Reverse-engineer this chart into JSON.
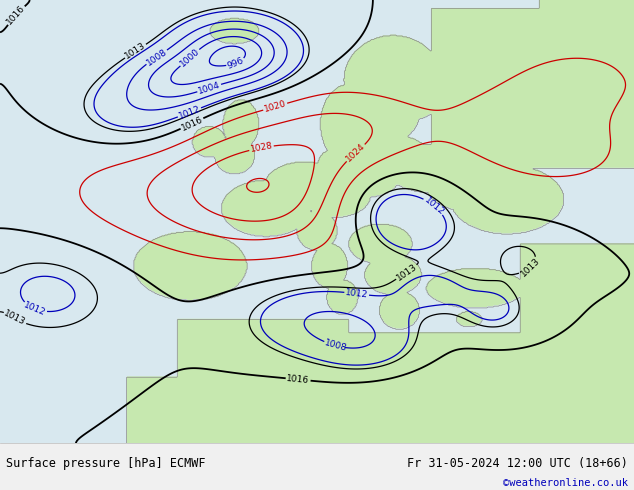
{
  "title_left": "Surface pressure [hPa] ECMWF",
  "title_right": "Fr 31-05-2024 12:00 UTC (18+66)",
  "credit": "©weatheronline.co.uk",
  "sea_color": "#d8e8f0",
  "land_color": "#c8e8b0",
  "coast_color": "#888888",
  "footer_bg": "#f0f0f0",
  "blue": "#0000bb",
  "red": "#cc0000",
  "black": "#000000",
  "dark_blue": "#000088"
}
